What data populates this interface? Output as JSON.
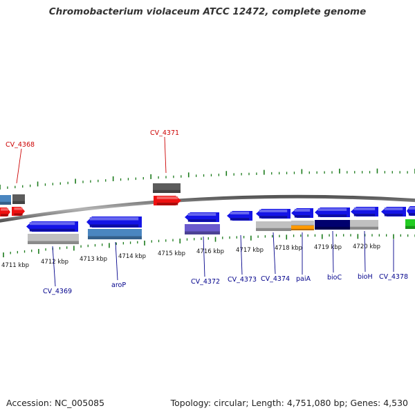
{
  "title": "Chromobacterium violaceum ATCC 12472, complete genome",
  "footer": {
    "accession": "Accession: NC_005085",
    "summary": "Topology: circular; Length: 4,751,080 bp; Genes: 4,530"
  },
  "colors": {
    "backbone": "#8c8c8c",
    "tick": "#1a7a1a",
    "label_forward": "#cc0000",
    "label_reverse": "#00008b",
    "blue": "#1414e6",
    "red": "#ee1111",
    "dark_gray": "#5c5c5c",
    "light_gray": "#c0c0c0",
    "steel_blue": "#4a86c0",
    "purple": "#6a5acd",
    "orange": "#ff9900",
    "navy": "#00006e",
    "green": "#22cc22"
  },
  "tick_labels": [
    "4711 kbp",
    "4712 kbp",
    "4713 kbp",
    "4714 kbp",
    "4715 kbp",
    "4716 kbp",
    "4717 kbp",
    "4718 kbp",
    "4719 kbp",
    "4720 kbp"
  ],
  "gene_labels": [
    {
      "name": "CV_4368",
      "strand": "forward"
    },
    {
      "name": "CV_4371",
      "strand": "forward"
    },
    {
      "name": "CV_4369",
      "strand": "reverse"
    },
    {
      "name": "aroP",
      "strand": "reverse"
    },
    {
      "name": "CV_4372",
      "strand": "reverse"
    },
    {
      "name": "CV_4373",
      "strand": "reverse"
    },
    {
      "name": "CV_4374",
      "strand": "reverse"
    },
    {
      "name": "paiA",
      "strand": "reverse"
    },
    {
      "name": "bioC",
      "strand": "reverse"
    },
    {
      "name": "bioH",
      "strand": "reverse"
    },
    {
      "name": "CV_4378",
      "strand": "reverse"
    }
  ],
  "features": [
    {
      "ring": "fwd-cog",
      "color": "steel_blue"
    },
    {
      "ring": "fwd-cog",
      "color": "dark_gray"
    },
    {
      "ring": "fwd-cog",
      "color": "dark_gray"
    },
    {
      "ring": "fwd-cds",
      "color": "red",
      "dir": "right"
    },
    {
      "ring": "fwd-cds",
      "color": "red",
      "dir": "right"
    },
    {
      "ring": "fwd-cds",
      "color": "red",
      "dir": "right"
    },
    {
      "ring": "rev-cds",
      "color": "blue",
      "dir": "left"
    },
    {
      "ring": "rev-cds",
      "color": "blue",
      "dir": "left"
    },
    {
      "ring": "rev-cds",
      "color": "blue",
      "dir": "left"
    },
    {
      "ring": "rev-cds",
      "color": "blue",
      "dir": "left"
    },
    {
      "ring": "rev-cds",
      "color": "blue",
      "dir": "left"
    },
    {
      "ring": "rev-cds",
      "color": "blue",
      "dir": "left"
    },
    {
      "ring": "rev-cds",
      "color": "blue",
      "dir": "left"
    },
    {
      "ring": "rev-cds",
      "color": "blue",
      "dir": "left"
    },
    {
      "ring": "rev-cds",
      "color": "blue",
      "dir": "left"
    },
    {
      "ring": "rev-cds",
      "color": "blue",
      "dir": "left"
    },
    {
      "ring": "rev-cog",
      "color": "light_gray"
    },
    {
      "ring": "rev-cog",
      "color": "steel_blue"
    },
    {
      "ring": "rev-cog",
      "color": "purple"
    },
    {
      "ring": "rev-cog",
      "color": "light_gray"
    },
    {
      "ring": "rev-cog",
      "color": "light_gray"
    },
    {
      "ring": "rev-cog",
      "color": "orange"
    },
    {
      "ring": "rev-cog",
      "color": "navy"
    },
    {
      "ring": "rev-cog",
      "color": "light_gray"
    },
    {
      "ring": "rev-cog",
      "color": "green"
    }
  ]
}
